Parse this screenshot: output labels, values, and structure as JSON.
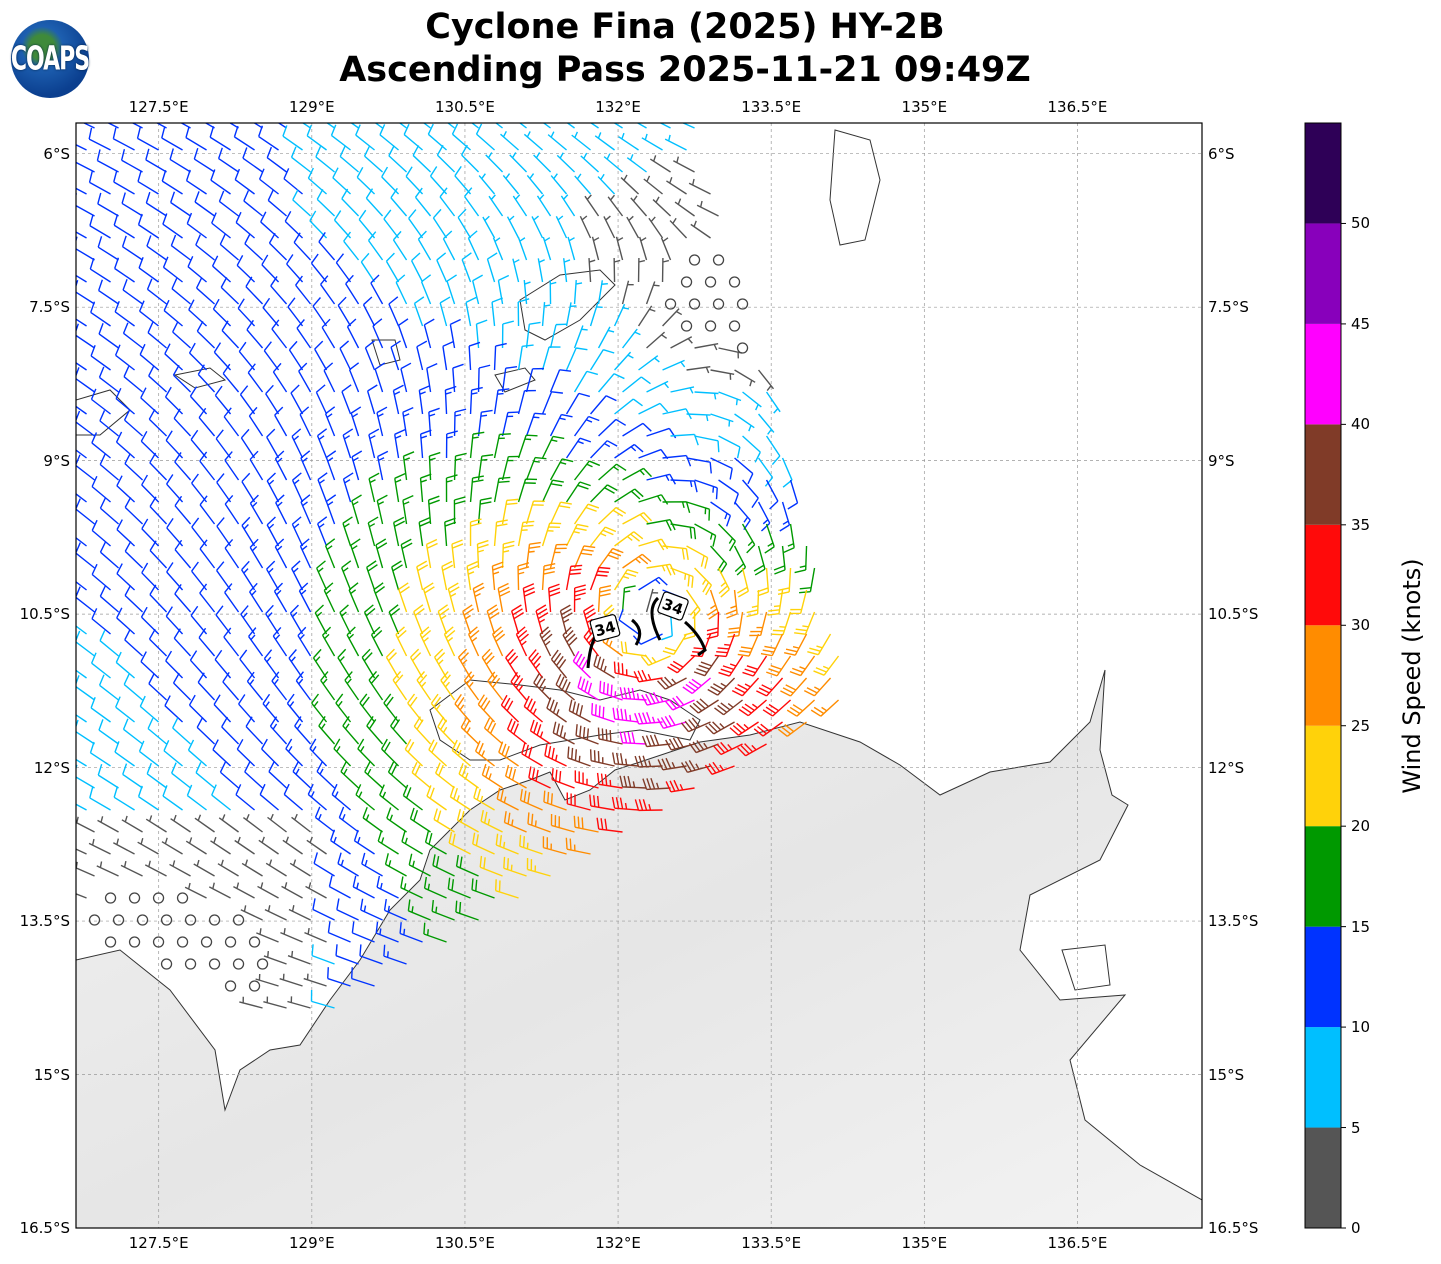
{
  "title": {
    "line1": "Cyclone Fina (2025) HY-2B",
    "line2": "Ascending Pass 2025-11-21 09:49Z"
  },
  "logo": {
    "text": "COAPS"
  },
  "map": {
    "lon_range": [
      126.69,
      137.72
    ],
    "lat_range": [
      -5.7,
      -16.5
    ],
    "lon_ticks": [
      {
        "v": 127.5,
        "label": "127.5°E"
      },
      {
        "v": 129,
        "label": "129°E"
      },
      {
        "v": 130.5,
        "label": "130.5°E"
      },
      {
        "v": 132,
        "label": "132°E"
      },
      {
        "v": 133.5,
        "label": "133.5°E"
      },
      {
        "v": 135,
        "label": "135°E"
      },
      {
        "v": 136.5,
        "label": "136.5°E"
      }
    ],
    "lat_ticks": [
      {
        "v": -6,
        "label": "6°S"
      },
      {
        "v": -7.5,
        "label": "7.5°S"
      },
      {
        "v": -9,
        "label": "9°S"
      },
      {
        "v": -10.5,
        "label": "10.5°S"
      },
      {
        "v": -12,
        "label": "12°S"
      },
      {
        "v": -13.5,
        "label": "13.5°S"
      },
      {
        "v": -15,
        "label": "15°S"
      },
      {
        "v": -16.5,
        "label": "16.5°S"
      }
    ],
    "center": {
      "lon": 132.3,
      "lat": -10.7
    },
    "contour_labels": [
      "34",
      "34"
    ]
  },
  "colorbar": {
    "label": "Wind Speed (knots)",
    "ticks": [
      "0",
      "5",
      "10",
      "15",
      "20",
      "25",
      "30",
      "35",
      "40",
      "45",
      "50"
    ],
    "bins": [
      {
        "min": 0,
        "color": "#555555"
      },
      {
        "min": 5,
        "color": "#00bfff"
      },
      {
        "min": 10,
        "color": "#0033ff"
      },
      {
        "min": 15,
        "color": "#009900"
      },
      {
        "min": 20,
        "color": "#ffd20a"
      },
      {
        "min": 25,
        "color": "#ff8c00"
      },
      {
        "min": 30,
        "color": "#ff0a0a"
      },
      {
        "min": 35,
        "color": "#803b28"
      },
      {
        "min": 40,
        "color": "#ff00ff"
      },
      {
        "min": 45,
        "color": "#8800bb"
      },
      {
        "min": 50,
        "color": "#2e0057"
      }
    ],
    "max": 55
  }
}
